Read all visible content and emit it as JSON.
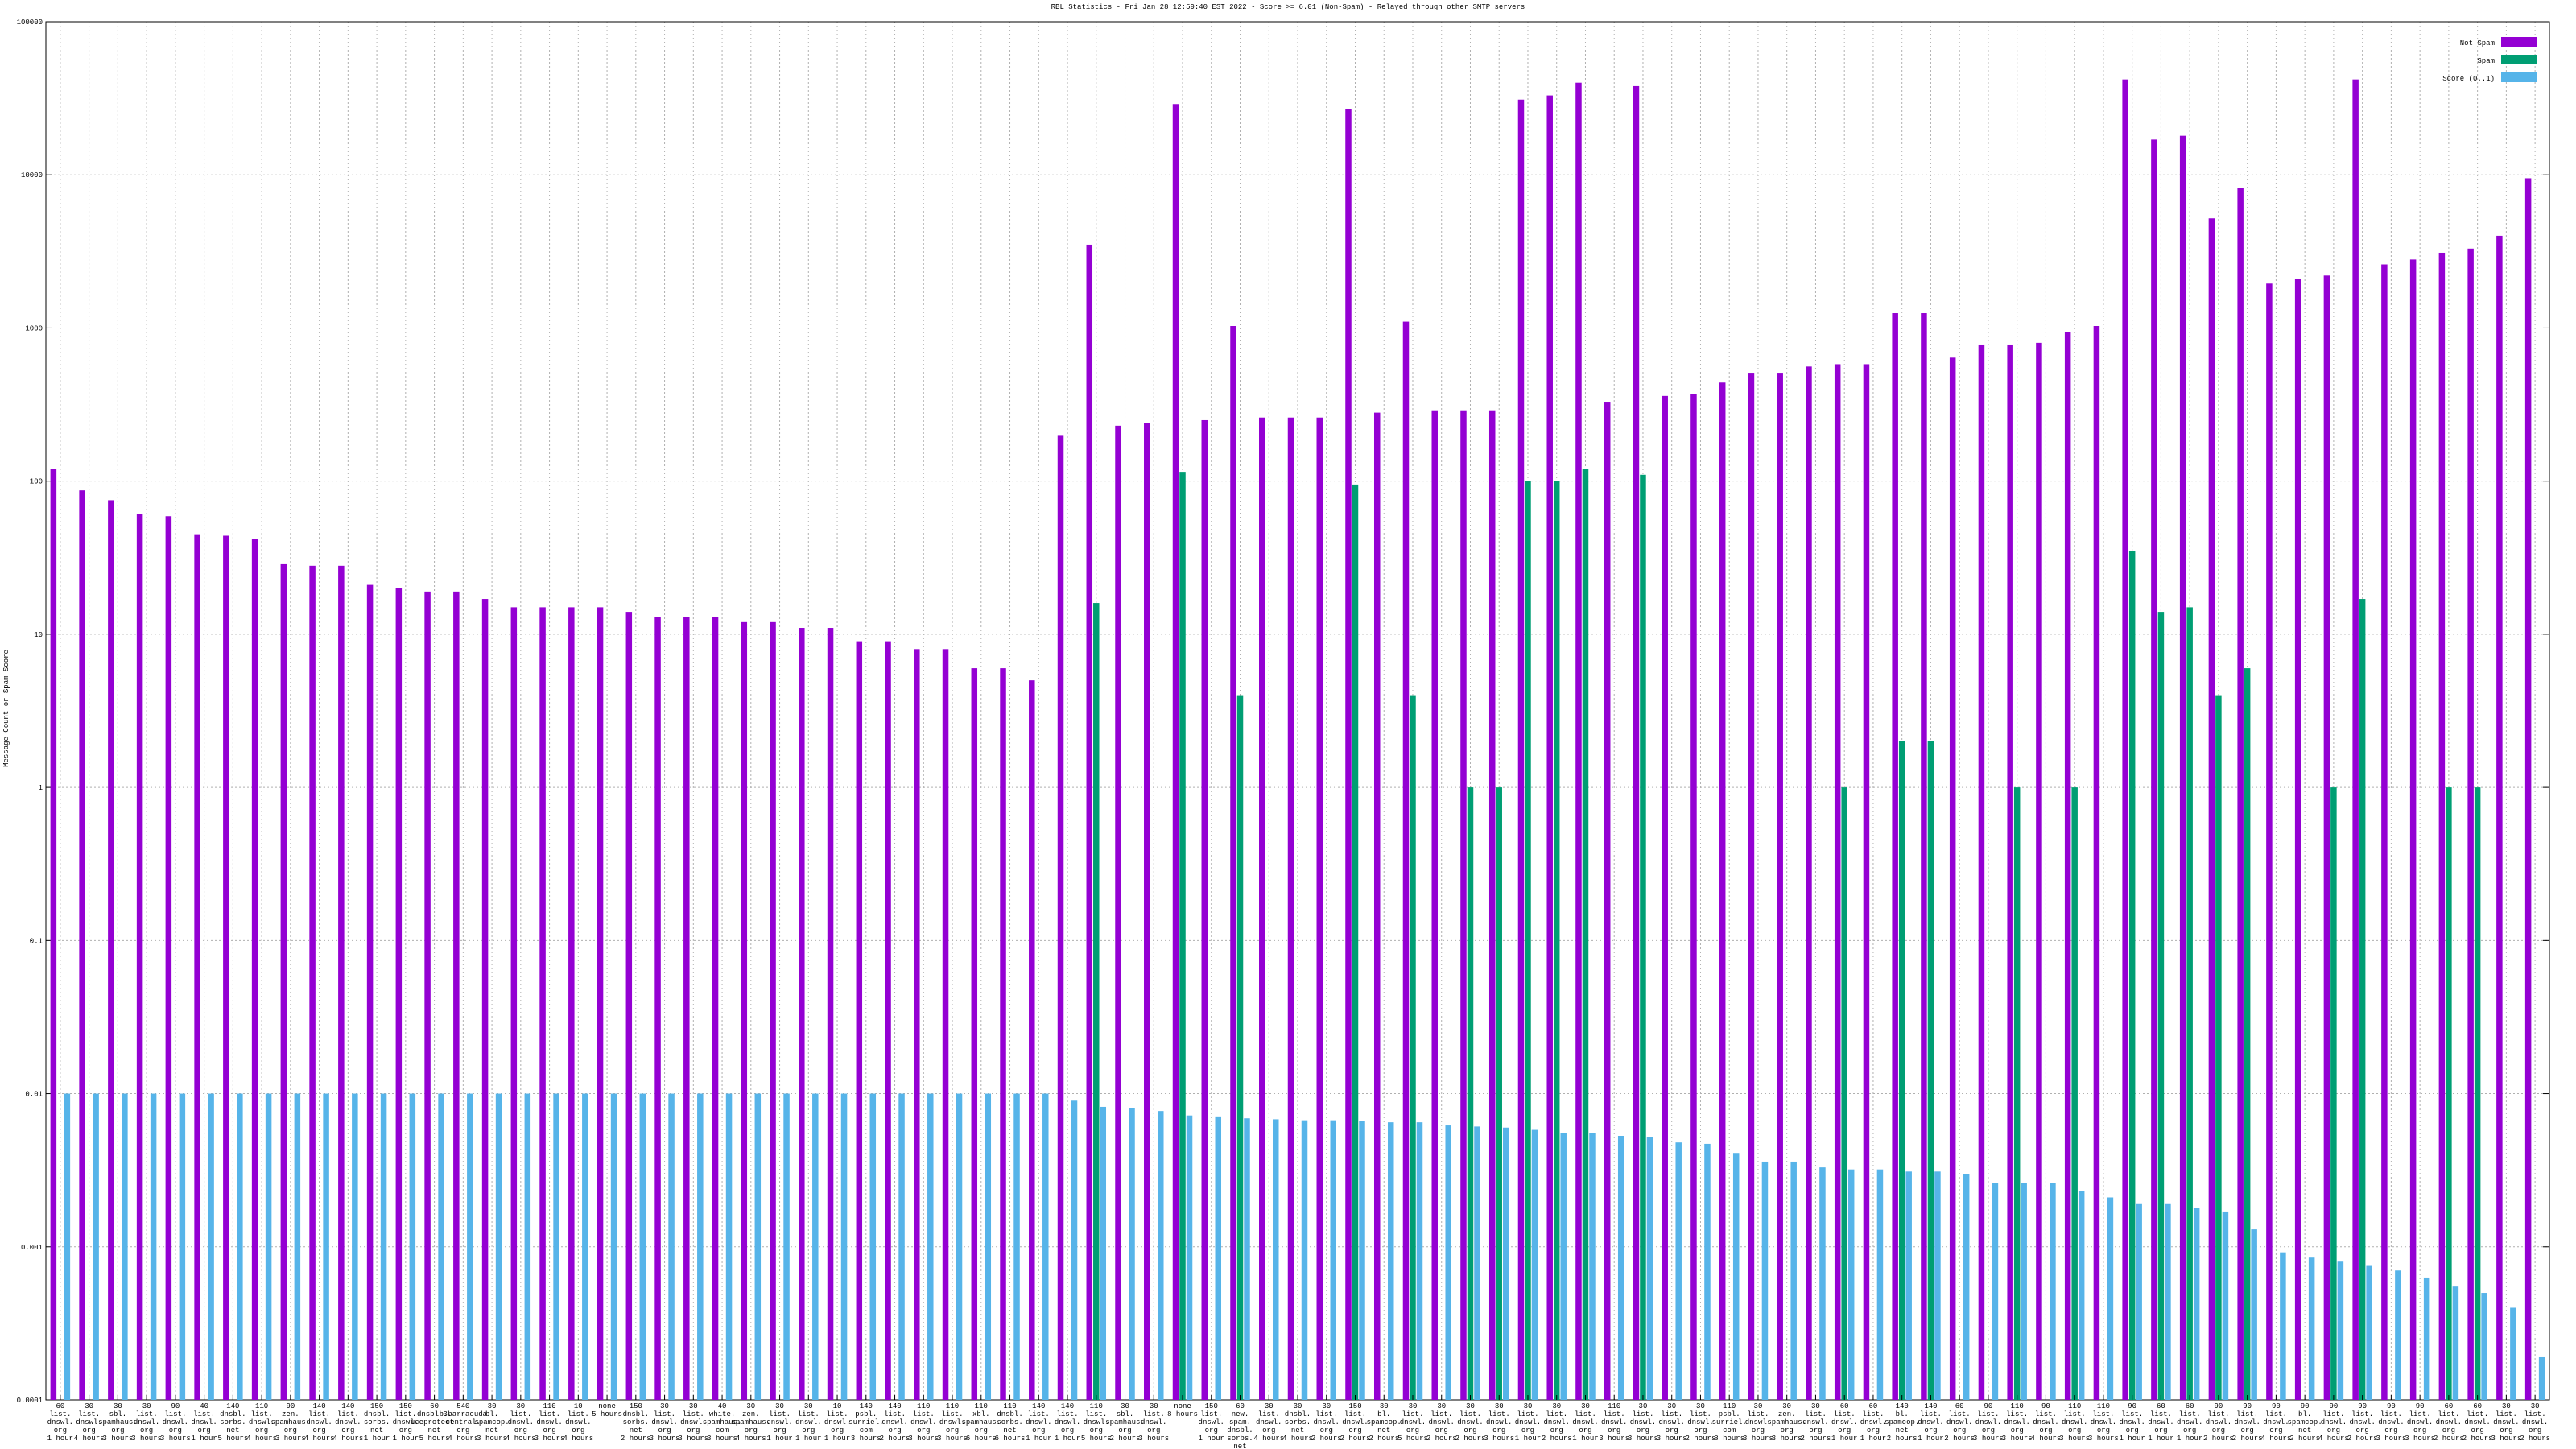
{
  "chart_data": {
    "type": "bar",
    "title": "RBL Statistics - Fri Jan 28 12:59:40 EST 2022 - Score >= 6.01 (Non-Spam) - Relayed through other SMTP servers",
    "y_label": "Message Count or Spam Score",
    "log": true,
    "grid": true,
    "legend": "top right",
    "ylim": [
      0.0001,
      100000
    ],
    "yticks": [
      0.0001,
      0.001,
      0.01,
      0.1,
      1,
      10,
      100,
      1000,
      10000,
      100000
    ],
    "categories": [
      "60\nlist.\ndnswl.\norg\n1 hour",
      "30\nlist.\ndnswl.\norg\n4 hours",
      "30\nsbl.\nspamhaus.\norg\n3 hours",
      "30\nlist.\ndnswl.\norg\n3 hours",
      "90\nlist.\ndnswl.\norg\n3 hours",
      "40\nlist.\ndnswl.\norg\n1 hour",
      "140\ndnsbl.\nsorbs.\nnet\n5 hours",
      "110\nlist.\ndnswl.\norg\n4 hours",
      "90\nzen.\nspamhaus.\norg\n3 hours",
      "140\nlist.\ndnswl.\norg\n4 hours",
      "140\nlist.\ndnswl.\norg\n4 hours",
      "150\ndnsbl.\nsorbs.\nnet\n1 hour",
      "150\nlist.\ndnswl.\norg\n1 hour",
      "60\ndnsbl-3.\nuceprotect.\nnet\n5 hours",
      "540\nb.barracuda\ncentral.\norg\n4 hours",
      "30\nbl.\nspamcop.\nnet\n3 hours",
      "30\nlist.\ndnswl.\norg\n4 hours",
      "110\nlist.\ndnswl.\norg\n3 hours",
      "10\nlist.\ndnswl.\norg\n4 hours",
      "none\n5 hours",
      "150\ndnsbl.\nsorbs.\nnet\n2 hours",
      "30\nlist.\ndnswl.\norg\n3 hours",
      "30\nlist.\ndnswl.\norg\n3 hours",
      "40\nwhite.\nspamhaus.\ncom\n3 hours",
      "30\nzen.\nspamhaus.\norg\n4 hours",
      "30\nlist.\ndnswl.\norg\n1 hour",
      "30\nlist.\ndnswl.\norg\n1 hour",
      "10\nlist.\ndnswl.\norg\n1 hour",
      "140\npsbl.\nsurriel.\ncom\n3 hours",
      "140\nlist.\ndnswl.\norg\n2 hours",
      "110\nlist.\ndnswl.\norg\n3 hours",
      "110\nlist.\ndnswl.\norg\n3 hours",
      "110\nxbl.\nspamhaus.\norg\n6 hours",
      "110\ndnsbl.\nsorbs.\nnet\n6 hours",
      "140\nlist.\ndnswl.\norg\n1 hour",
      "140\nlist.\ndnswl.\norg\n1 hour",
      "110\nlist.\ndnswl.\norg\n5 hours",
      "30\nsbl.\nspamhaus.\norg\n2 hours",
      "30\nlist.\ndnswl.\norg\n3 hours",
      "none\n8 hours",
      "150\nlist.\ndnswl.\norg\n1 hour",
      "60\nnew.\nspam.\ndnsbl.\nsorbs.\nnet\n4 hours",
      "30\nlist.\ndnswl.\norg\n4 hours",
      "30\ndnsbl.\nsorbs.\nnet\n4 hours",
      "30\nlist.\ndnswl.\norg\n2 hours",
      "150\nlist.\ndnswl.\norg\n2 hours",
      "30\nbl.\nspamcop.\nnet\n2 hours",
      "30\nlist.\ndnswl.\norg\n5 hours",
      "30\nlist.\ndnswl.\norg\n2 hours",
      "30\nlist.\ndnswl.\norg\n2 hours",
      "30\nlist.\ndnswl.\norg\n3 hours",
      "30\nlist.\ndnswl.\norg\n1 hour",
      "30\nlist.\ndnswl.\norg\n2 hours",
      "30\nlist.\ndnswl.\norg\n1 hour",
      "110\nlist.\ndnswl.\norg\n3 hours",
      "30\nlist.\ndnswl.\norg\n3 hours",
      "30\nlist.\ndnswl.\norg\n3 hours",
      "30\nlist.\ndnswl.\norg\n2 hours",
      "110\npsbl.\nsurriel.\ncom\n8 hours",
      "30\nlist.\ndnswl.\norg\n3 hours",
      "30\nzen.\nspamhaus.\norg\n3 hours",
      "30\nlist.\ndnswl.\norg\n2 hours",
      "60\nlist.\ndnswl.\norg\n1 hour",
      "60\nlist.\ndnswl.\norg\n1 hour",
      "140\nbl.\nspamcop.\nnet\n2 hours",
      "140\nlist.\ndnswl.\norg\n1 hour",
      "60\nlist.\ndnswl.\norg\n2 hours",
      "90\nlist.\ndnswl.\norg\n3 hours",
      "110\nlist.\ndnswl.\norg\n3 hours",
      "90\nlist.\ndnswl.\norg\n4 hours",
      "110\nlist.\ndnswl.\norg\n3 hours",
      "110\nlist.\ndnswl.\norg\n3 hours",
      "90\nlist.\ndnswl.\norg\n1 hour",
      "60\nlist.\ndnswl.\norg\n1 hour",
      "60\nlist.\ndnswl.\norg\n1 hour",
      "90\nlist.\ndnswl.\norg\n2 hours",
      "90\nlist.\ndnswl.\norg\n2 hours",
      "90\nlist.\ndnswl.\norg\n4 hours",
      "90\nbl.\nspamcop.\nnet\n2 hours",
      "90\nlist.\ndnswl.\norg\n4 hours",
      "90\nlist.\ndnswl.\norg\n2 hours",
      "90\nlist.\ndnswl.\norg\n3 hours",
      "90\nlist.\ndnswl.\norg\n3 hours",
      "60\nlist.\ndnswl.\norg\n2 hours",
      "60\nlist.\ndnswl.\norg\n2 hours",
      "30\nlist.\ndnswl.\norg\n3 hours",
      "30\nlist.\ndnswl.\norg\n2 hours"
    ],
    "series": [
      {
        "name": "Not Spam",
        "color": "#9400d3",
        "values": [
          120,
          87,
          75,
          61,
          59,
          45,
          44,
          42,
          29,
          28,
          28,
          21,
          20,
          19,
          19,
          17,
          15,
          15,
          15,
          15,
          14,
          13,
          13,
          13,
          12,
          12,
          11,
          11,
          9,
          9,
          8,
          8,
          6,
          6,
          5,
          200,
          3500,
          230,
          240,
          29000,
          250,
          1030,
          260,
          260,
          260,
          27000,
          280,
          1100,
          290,
          290,
          290,
          31000,
          33000,
          40000,
          330,
          38000,
          360,
          370,
          440,
          510,
          510,
          560,
          580,
          580,
          1250,
          1250,
          640,
          780,
          780,
          800,
          940,
          1030,
          42000,
          17000,
          18000,
          5200,
          8200,
          1950,
          2100,
          2200,
          42000,
          2600,
          2800,
          3100,
          3300,
          4000,
          9500
        ]
      },
      {
        "name": "Spam",
        "color": "#009e73",
        "values": [
          null,
          null,
          null,
          null,
          null,
          null,
          null,
          null,
          null,
          null,
          null,
          null,
          null,
          null,
          null,
          null,
          null,
          null,
          null,
          null,
          null,
          null,
          null,
          null,
          null,
          null,
          null,
          null,
          null,
          null,
          null,
          null,
          null,
          null,
          null,
          null,
          16,
          null,
          null,
          115,
          null,
          4,
          null,
          null,
          null,
          95,
          null,
          4,
          null,
          1,
          1,
          100,
          100,
          120,
          null,
          110,
          null,
          null,
          null,
          null,
          null,
          null,
          1,
          null,
          2,
          2,
          null,
          null,
          1,
          null,
          1,
          null,
          35,
          14,
          15,
          4,
          6,
          null,
          null,
          1,
          17,
          null,
          null,
          1,
          1,
          null,
          null
        ]
      },
      {
        "name": "Score (0..1)",
        "color": "#56b4e9",
        "values": [
          0.01,
          0.01,
          0.01,
          0.01,
          0.01,
          0.01,
          0.01,
          0.01,
          0.01,
          0.01,
          0.01,
          0.01,
          0.01,
          0.01,
          0.01,
          0.01,
          0.01,
          0.01,
          0.01,
          0.01,
          0.01,
          0.01,
          0.01,
          0.01,
          0.01,
          0.01,
          0.01,
          0.01,
          0.01,
          0.01,
          0.01,
          0.01,
          0.01,
          0.01,
          0.01,
          0.009,
          0.0082,
          0.008,
          0.0077,
          0.0072,
          0.0071,
          0.0069,
          0.0068,
          0.0067,
          0.0067,
          0.0066,
          0.0065,
          0.0065,
          0.0062,
          0.0061,
          0.006,
          0.0058,
          0.0055,
          0.0055,
          0.0053,
          0.0052,
          0.0048,
          0.0047,
          0.0041,
          0.0036,
          0.0036,
          0.0033,
          0.0032,
          0.0032,
          0.0031,
          0.0031,
          0.003,
          0.0026,
          0.0026,
          0.0026,
          0.0023,
          0.0021,
          0.0019,
          0.0019,
          0.0018,
          0.0017,
          0.0013,
          0.00092,
          0.00085,
          0.0008,
          0.00075,
          0.0007,
          0.00063,
          0.00055,
          0.0005,
          0.0004,
          0.00019
        ]
      }
    ]
  }
}
